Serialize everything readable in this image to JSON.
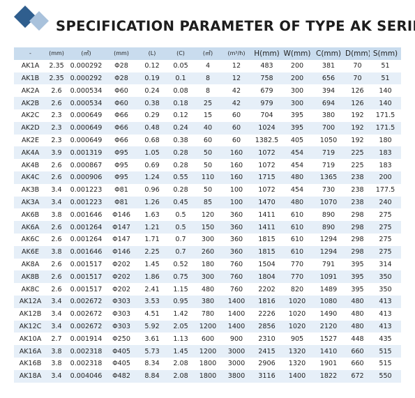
{
  "header": {
    "title": "SPECIFICATION PARAMETER OF TYPE AK SERIES"
  },
  "table": {
    "columns": [
      "-",
      "(mm)",
      "(㎡)",
      "(mm)",
      "(L)",
      "(C)",
      "(㎡)",
      "(m³/h)",
      "H(mm)",
      "W(mm)",
      "C(mm)",
      "D(mm)",
      "S(mm)"
    ],
    "rows": [
      [
        "AK1A",
        "2.35",
        "0.000292",
        "Φ28",
        "0.12",
        "0.05",
        "4",
        "12",
        "483",
        "200",
        "381",
        "70",
        "51"
      ],
      [
        "AK1B",
        "2.35",
        "0.000292",
        "Φ28",
        "0.19",
        "0.1",
        "8",
        "12",
        "758",
        "200",
        "656",
        "70",
        "51"
      ],
      [
        "AK2A",
        "2.6",
        "0.000534",
        "Φ60",
        "0.24",
        "0.08",
        "8",
        "42",
        "679",
        "300",
        "394",
        "126",
        "140"
      ],
      [
        "AK2B",
        "2.6",
        "0.000534",
        "Φ60",
        "0.38",
        "0.18",
        "25",
        "42",
        "979",
        "300",
        "694",
        "126",
        "140"
      ],
      [
        "AK2C",
        "2.3",
        "0.000649",
        "Φ66",
        "0.29",
        "0.12",
        "15",
        "60",
        "704",
        "395",
        "380",
        "192",
        "171.5"
      ],
      [
        "AK2D",
        "2.3",
        "0.000649",
        "Φ66",
        "0.48",
        "0.24",
        "40",
        "60",
        "1024",
        "395",
        "700",
        "192",
        "171.5"
      ],
      [
        "AK2E",
        "2.3",
        "0.000649",
        "Φ66",
        "0.68",
        "0.38",
        "60",
        "60",
        "1382.5",
        "405",
        "1050",
        "192",
        "180"
      ],
      [
        "AK4A",
        "3.9",
        "0.001319",
        "Φ95",
        "1.05",
        "0.28",
        "50",
        "160",
        "1072",
        "454",
        "719",
        "225",
        "183"
      ],
      [
        "AK4B",
        "2.6",
        "0.000867",
        "Φ95",
        "0.69",
        "0.28",
        "50",
        "160",
        "1072",
        "454",
        "719",
        "225",
        "183"
      ],
      [
        "AK4C",
        "2.6",
        "0.000906",
        "Φ95",
        "1.24",
        "0.55",
        "110",
        "160",
        "1715",
        "480",
        "1365",
        "238",
        "200"
      ],
      [
        "AK3B",
        "3.4",
        "0.001223",
        "Φ81",
        "0.96",
        "0.28",
        "50",
        "100",
        "1072",
        "454",
        "730",
        "238",
        "177.5"
      ],
      [
        "AK3A",
        "3.4",
        "0.001223",
        "Φ81",
        "1.26",
        "0.45",
        "85",
        "100",
        "1470",
        "480",
        "1070",
        "238",
        "240"
      ],
      [
        "AK6B",
        "3.8",
        "0.001646",
        "Φ146",
        "1.63",
        "0.5",
        "120",
        "360",
        "1411",
        "610",
        "890",
        "298",
        "275"
      ],
      [
        "AK6A",
        "2.6",
        "0.001264",
        "Φ147",
        "1.21",
        "0.5",
        "150",
        "360",
        "1411",
        "610",
        "890",
        "298",
        "275"
      ],
      [
        "AK6C",
        "2.6",
        "0.001264",
        "Φ147",
        "1.71",
        "0.7",
        "300",
        "360",
        "1815",
        "610",
        "1294",
        "298",
        "275"
      ],
      [
        "AK6E",
        "3.8",
        "0.001646",
        "Φ146",
        "2.25",
        "0.7",
        "260",
        "360",
        "1815",
        "610",
        "1294",
        "298",
        "275"
      ],
      [
        "AK8A",
        "2.6",
        "0.001517",
        "Φ202",
        "1.45",
        "0.52",
        "180",
        "760",
        "1504",
        "770",
        "791",
        "395",
        "314"
      ],
      [
        "AK8B",
        "2.6",
        "0.001517",
        "Φ202",
        "1.86",
        "0.75",
        "300",
        "760",
        "1804",
        "770",
        "1091",
        "395",
        "350"
      ],
      [
        "AK8C",
        "2.6",
        "0.001517",
        "Φ202",
        "2.41",
        "1.15",
        "480",
        "760",
        "2202",
        "820",
        "1489",
        "395",
        "350"
      ],
      [
        "AK12A",
        "3.4",
        "0.002672",
        "Φ303",
        "3.53",
        "0.95",
        "380",
        "1400",
        "1816",
        "1020",
        "1080",
        "480",
        "413"
      ],
      [
        "AK12B",
        "3.4",
        "0.002672",
        "Φ303",
        "4.51",
        "1.42",
        "780",
        "1400",
        "2226",
        "1020",
        "1490",
        "480",
        "413"
      ],
      [
        "AK12C",
        "3.4",
        "0.002672",
        "Φ303",
        "5.92",
        "2.05",
        "1200",
        "1400",
        "2856",
        "1020",
        "2120",
        "480",
        "413"
      ],
      [
        "AK10A",
        "2.7",
        "0.001914",
        "Φ250",
        "3.61",
        "1.13",
        "600",
        "900",
        "2310",
        "905",
        "1527",
        "448",
        "435"
      ],
      [
        "AK16A",
        "3.8",
        "0.002318",
        "Φ405",
        "5.73",
        "1.45",
        "1200",
        "3000",
        "2415",
        "1320",
        "1410",
        "660",
        "515"
      ],
      [
        "AK16B",
        "3.8",
        "0.002318",
        "Φ405",
        "8.34",
        "2.08",
        "1800",
        "3000",
        "2906",
        "1320",
        "1901",
        "660",
        "515"
      ],
      [
        "AK18A",
        "3.4",
        "0.004046",
        "Φ482",
        "8.84",
        "2.08",
        "1800",
        "3800",
        "3116",
        "1400",
        "1822",
        "672",
        "550"
      ]
    ]
  }
}
